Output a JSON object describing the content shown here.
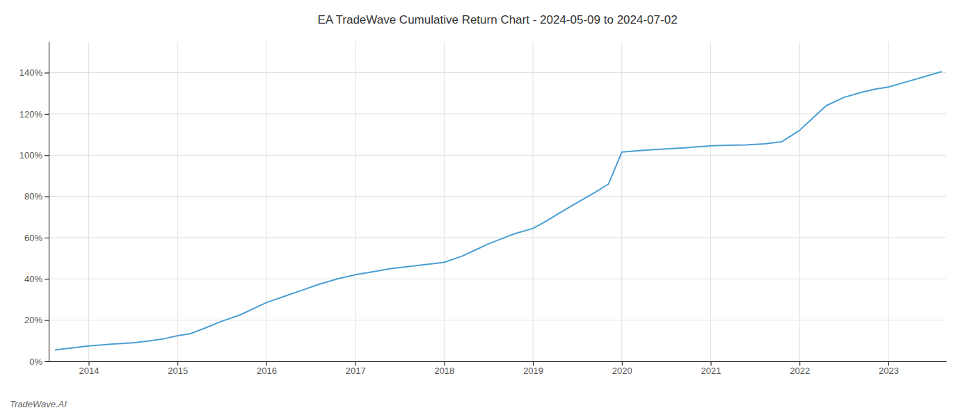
{
  "chart_data": {
    "type": "line",
    "title": "EA TradeWave Cumulative Return Chart - 2024-05-09 to 2024-07-02",
    "annotations": [
      "TradeWave.AI"
    ],
    "color": "#4a9fd4",
    "grid": true,
    "x": [
      2013.62,
      2013.7,
      2013.8,
      2013.9,
      2014.0,
      2014.15,
      2014.3,
      2014.5,
      2014.7,
      2014.85,
      2015.0,
      2015.15,
      2015.3,
      2015.5,
      2015.7,
      2015.85,
      2016.0,
      2016.2,
      2016.4,
      2016.6,
      2016.8,
      2017.0,
      2017.2,
      2017.4,
      2017.6,
      2017.8,
      2018.0,
      2018.2,
      2018.35,
      2018.5,
      2018.65,
      2018.8,
      2019.0,
      2019.15,
      2019.3,
      2019.5,
      2019.7,
      2019.85,
      2020.0,
      2020.15,
      2020.3,
      2020.5,
      2020.7,
      2020.85,
      2021.0,
      2021.2,
      2021.4,
      2021.6,
      2021.8,
      2022.0,
      2022.15,
      2022.3,
      2022.5,
      2022.7,
      2022.85,
      2023.0,
      2023.2,
      2023.4,
      2023.6
    ],
    "values": [
      5.5,
      6.0,
      6.5,
      7.0,
      7.5,
      8.0,
      8.5,
      9.0,
      10.0,
      11.0,
      12.5,
      13.5,
      16.0,
      19.5,
      22.5,
      25.5,
      28.5,
      31.5,
      34.5,
      37.5,
      40.0,
      42.0,
      43.5,
      45.0,
      46.0,
      47.0,
      48.0,
      51.0,
      54.0,
      57.0,
      59.5,
      62.0,
      64.5,
      68.0,
      72.0,
      77.0,
      82.0,
      86.0,
      101.5,
      102.0,
      102.5,
      103.0,
      103.5,
      104.0,
      104.5,
      104.8,
      105.0,
      105.5,
      106.5,
      112.0,
      118.0,
      124.0,
      128.0,
      130.5,
      132.0,
      133.0,
      135.5,
      138.0,
      140.5
    ],
    "xlim": [
      2013.55,
      2023.65
    ],
    "xticks": [
      2014,
      2015,
      2016,
      2017,
      2018,
      2019,
      2020,
      2021,
      2022,
      2023
    ],
    "ylim": [
      0,
      155
    ],
    "yticks": [
      {
        "value": 0,
        "label": "0%"
      },
      {
        "value": 20,
        "label": "20%"
      },
      {
        "value": 40,
        "label": "40%"
      },
      {
        "value": 60,
        "label": "60%"
      },
      {
        "value": 80,
        "label": "80%"
      },
      {
        "value": 100,
        "label": "100%"
      },
      {
        "value": 120,
        "label": "120%"
      },
      {
        "value": 140,
        "label": "140%"
      }
    ]
  }
}
